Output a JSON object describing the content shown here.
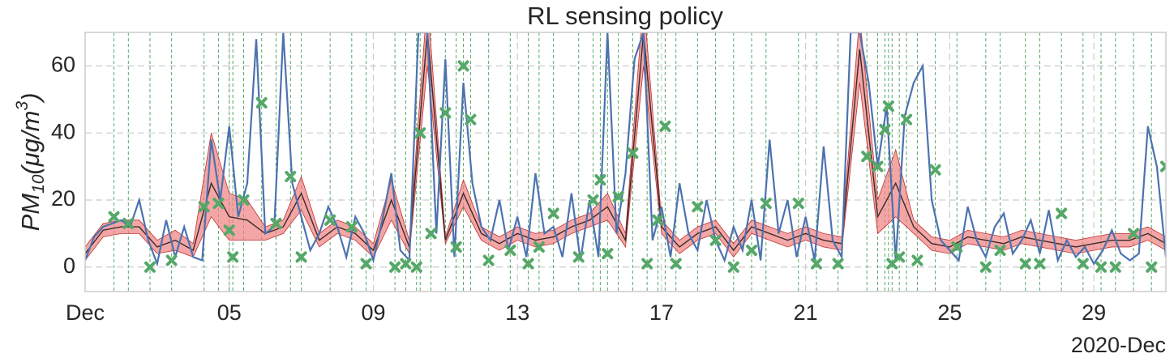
{
  "chart_data": {
    "type": "line",
    "title": "RL sensing policy",
    "ylabel": {
      "base": "PM",
      "sub": "10",
      "mid": "(μg/m",
      "sup": "3",
      "end": ")"
    },
    "x_offset_label": "2020-Dec",
    "xlim": [
      0,
      30
    ],
    "ylim": [
      -7.3,
      70
    ],
    "xticks": [
      {
        "value": 0,
        "label": "Dec"
      },
      {
        "value": 4,
        "label": "05"
      },
      {
        "value": 8,
        "label": "09"
      },
      {
        "value": 12,
        "label": "13"
      },
      {
        "value": 16,
        "label": "17"
      },
      {
        "value": 20,
        "label": "21"
      },
      {
        "value": 24,
        "label": "25"
      },
      {
        "value": 28,
        "label": "29"
      }
    ],
    "yticks": [
      0,
      20,
      40,
      60
    ],
    "grid": true,
    "band": {
      "color": "#f08080",
      "line_color": "#3a2a2a",
      "x": [
        0,
        0.5,
        1,
        1.5,
        2,
        2.5,
        3,
        3.5,
        4,
        4.5,
        5,
        5.5,
        6,
        6.5,
        7,
        7.5,
        8,
        8.5,
        9,
        9.5,
        10,
        10.5,
        11,
        11.5,
        12,
        12.5,
        13,
        13.5,
        14,
        14.5,
        15,
        15.5,
        16,
        16.5,
        17,
        17.5,
        18,
        18.5,
        19,
        19.5,
        20,
        20.5,
        21,
        21.5,
        22,
        22.5,
        23,
        23.5,
        24,
        24.5,
        25,
        25.5,
        26,
        26.5,
        27,
        27.5,
        28,
        28.5,
        29,
        29.5,
        30
      ],
      "mean": [
        4,
        11,
        12,
        12,
        6,
        8,
        5,
        25,
        15,
        14,
        10,
        12,
        22,
        8,
        12,
        10,
        5,
        20,
        6,
        70,
        8,
        22,
        10,
        7,
        10,
        8,
        9,
        12,
        14,
        18,
        8,
        70,
        12,
        6,
        10,
        12,
        5,
        12,
        10,
        8,
        10,
        8,
        7,
        65,
        15,
        25,
        12,
        7,
        6,
        9,
        8,
        7,
        9,
        8,
        7,
        6,
        7,
        8,
        8,
        10,
        7
      ],
      "lower": [
        2,
        9,
        10,
        10,
        4,
        5,
        3,
        15,
        8,
        8,
        8,
        10,
        17,
        6,
        10,
        8,
        3,
        14,
        4,
        60,
        7,
        18,
        8,
        5,
        8,
        6,
        7,
        10,
        12,
        14,
        6,
        60,
        10,
        4,
        8,
        10,
        3,
        10,
        8,
        6,
        8,
        6,
        5,
        55,
        10,
        15,
        10,
        5,
        4,
        7,
        6,
        5,
        7,
        6,
        5,
        4,
        5,
        6,
        6,
        8,
        5
      ],
      "upper": [
        6,
        13,
        14,
        14,
        8,
        11,
        7,
        40,
        22,
        20,
        12,
        14,
        27,
        10,
        14,
        12,
        7,
        26,
        8,
        80,
        9,
        26,
        12,
        9,
        12,
        10,
        11,
        14,
        16,
        22,
        10,
        80,
        14,
        8,
        12,
        14,
        7,
        14,
        12,
        10,
        12,
        10,
        9,
        75,
        20,
        35,
        14,
        9,
        8,
        11,
        10,
        9,
        11,
        10,
        9,
        8,
        9,
        10,
        10,
        12,
        9
      ]
    },
    "series": [
      {
        "color": "#4c72b0",
        "x": [
          0,
          0.25,
          0.5,
          0.75,
          1,
          1.25,
          1.5,
          1.75,
          2,
          2.25,
          2.5,
          2.75,
          3,
          3.25,
          3.5,
          3.75,
          4,
          4.25,
          4.5,
          4.75,
          5,
          5.25,
          5.5,
          5.75,
          6,
          6.25,
          6.5,
          6.75,
          7,
          7.25,
          7.5,
          7.75,
          8,
          8.25,
          8.5,
          8.75,
          9,
          9.25,
          9.5,
          9.75,
          10,
          10.25,
          10.5,
          10.75,
          11,
          11.25,
          11.5,
          11.75,
          12,
          12.25,
          12.5,
          12.75,
          13,
          13.25,
          13.5,
          13.75,
          14,
          14.25,
          14.5,
          14.75,
          15,
          15.25,
          15.5,
          15.75,
          16,
          16.25,
          16.5,
          16.75,
          17,
          17.25,
          17.5,
          17.75,
          18,
          18.25,
          18.5,
          18.75,
          19,
          19.25,
          19.5,
          19.75,
          20,
          20.25,
          20.5,
          20.75,
          21,
          21.25,
          21.5,
          21.75,
          22,
          22.25,
          22.5,
          22.75,
          23,
          23.25,
          23.5,
          23.75,
          24,
          24.25,
          24.5,
          24.75,
          25,
          25.25,
          25.5,
          25.75,
          26,
          26.25,
          26.5,
          26.75,
          27,
          27.25,
          27.5,
          27.75,
          28,
          28.25,
          28.5,
          28.75,
          29,
          29.25,
          29.5,
          29.75,
          30
        ],
        "values": [
          2,
          9,
          12,
          13,
          14,
          12,
          20,
          8,
          1,
          14,
          3,
          12,
          3,
          2,
          38,
          20,
          42,
          15,
          25,
          68,
          10,
          12,
          70,
          25,
          15,
          5,
          10,
          18,
          12,
          3,
          15,
          10,
          2,
          14,
          28,
          5,
          2,
          70,
          70,
          10,
          62,
          3,
          55,
          25,
          12,
          8,
          20,
          5,
          15,
          3,
          28,
          10,
          12,
          3,
          22,
          2,
          20,
          3,
          70,
          10,
          28,
          62,
          70,
          8,
          18,
          3,
          25,
          10,
          5,
          20,
          8,
          2,
          12,
          5,
          20,
          2,
          38,
          10,
          20,
          3,
          15,
          2,
          36,
          8,
          3,
          70,
          70,
          55,
          30,
          48,
          2,
          45,
          55,
          60,
          20,
          8,
          5,
          2,
          18,
          8,
          3,
          12,
          16,
          4,
          8,
          14,
          4,
          17,
          2,
          8,
          3,
          6,
          1,
          5,
          11,
          4,
          2,
          4,
          42,
          30,
          3
        ]
      }
    ],
    "samples": {
      "color": "#55a868",
      "x": [
        0.8,
        1.2,
        1.8,
        2.4,
        3.3,
        3.7,
        4.0,
        4.1,
        4.4,
        4.9,
        5.3,
        5.7,
        6.0,
        6.8,
        7.4,
        7.8,
        8.6,
        8.9,
        9.2,
        9.3,
        9.6,
        10.0,
        10.3,
        10.5,
        10.7,
        11.2,
        11.8,
        12.3,
        12.6,
        13.0,
        13.7,
        14.1,
        14.3,
        14.5,
        14.8,
        15.2,
        15.6,
        15.9,
        16.1,
        16.4,
        17.0,
        17.5,
        18.0,
        18.5,
        18.9,
        19.8,
        20.3,
        20.9,
        21.7,
        22.0,
        22.2,
        22.3,
        22.4,
        22.6,
        22.8,
        23.1,
        23.6,
        24.2,
        25.0,
        25.4,
        26.1,
        26.5,
        27.1,
        27.7,
        28.2,
        28.6,
        29.1,
        29.6,
        30.0
      ],
      "values": [
        15,
        13,
        0,
        2,
        18,
        19,
        11,
        3,
        20,
        49,
        13,
        27,
        3,
        14,
        12,
        1,
        0,
        1,
        0,
        40,
        10,
        46,
        6,
        60,
        44,
        2,
        5,
        1,
        6,
        16,
        3,
        20,
        26,
        4,
        21,
        34,
        1,
        14,
        42,
        1,
        18,
        8,
        0,
        5,
        19,
        19,
        1,
        1,
        33,
        30,
        41,
        48,
        1,
        3,
        44,
        2,
        29,
        6,
        0,
        5,
        1,
        1,
        16,
        1,
        0,
        0,
        10,
        0,
        30
      ]
    }
  }
}
